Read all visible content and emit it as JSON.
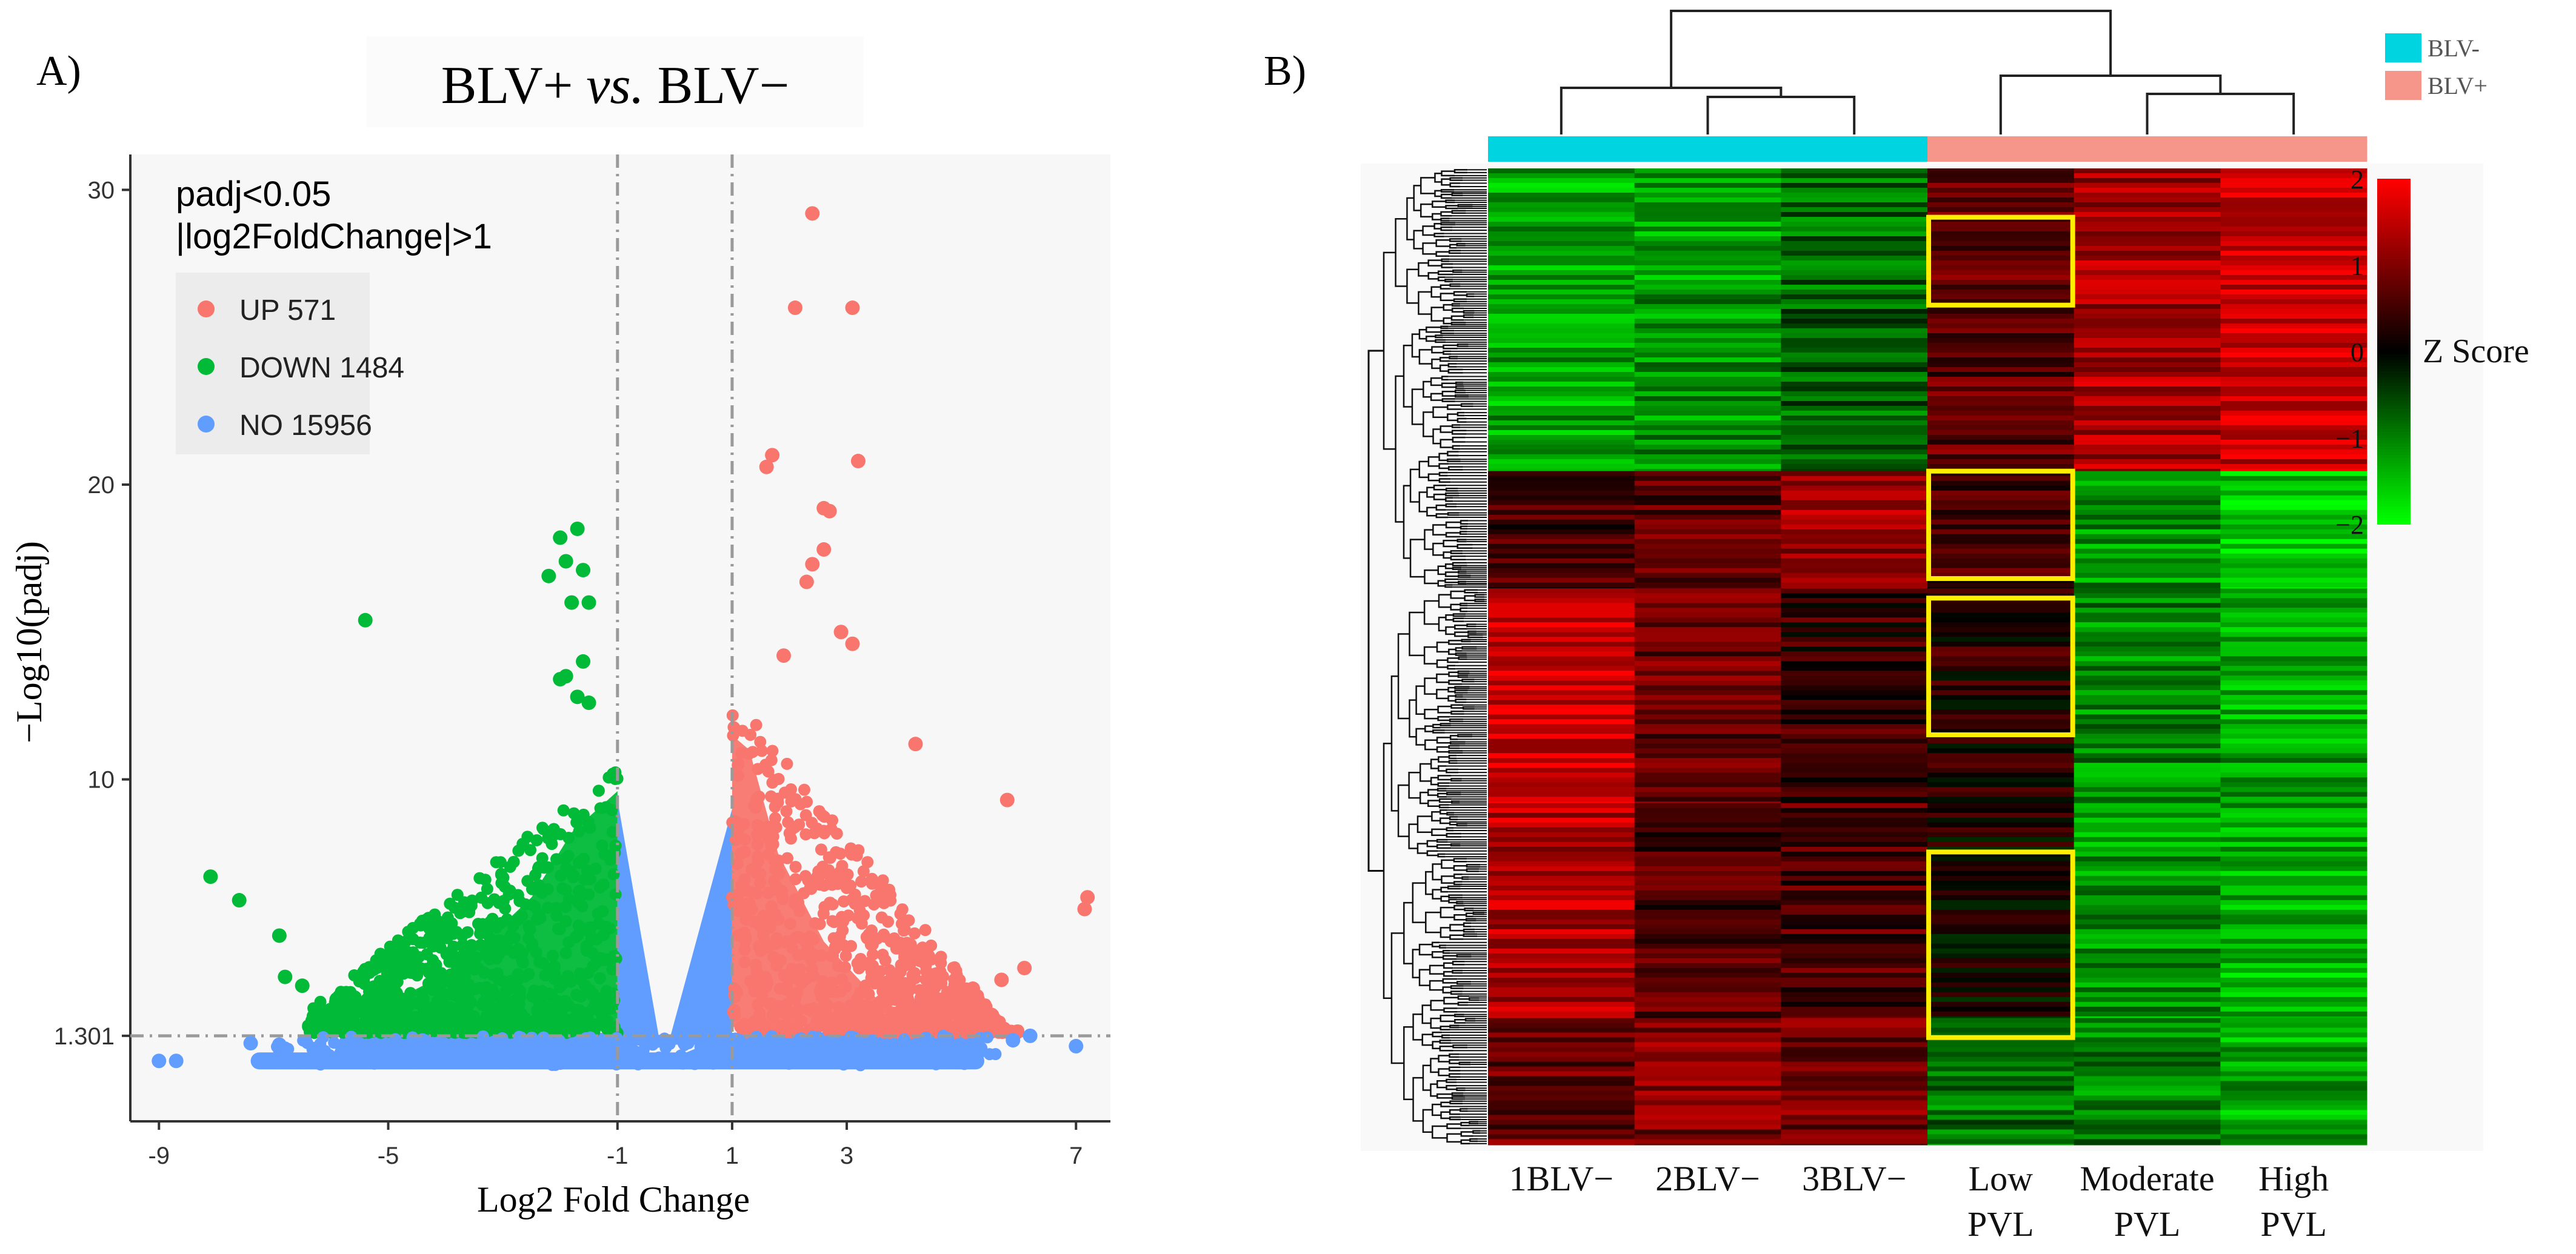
{
  "chart_data": [
    {
      "type": "scatter",
      "panel_label": "A)",
      "title": "BLV+ vs. BLV−",
      "title_parts": {
        "pre": "BLV+ ",
        "italic": "vs.",
        "post": " BLV−"
      },
      "xlabel": "Log2 Fold Change",
      "ylabel": "−Log10(padj)",
      "xlim": [
        -9.5,
        7.6
      ],
      "ylim": [
        -1.6,
        31.2
      ],
      "x_ticks": [
        -9,
        -5,
        -1,
        1,
        3,
        7
      ],
      "x_tick_labels": [
        "-9",
        "-5",
        "-1",
        "1",
        "3",
        "7"
      ],
      "y_ticks": [
        1.301,
        10,
        20,
        30
      ],
      "y_tick_labels": [
        "1.301",
        "10",
        "20",
        "30"
      ],
      "threshold_lines": {
        "x": [
          -1,
          1
        ],
        "y": 1.301
      },
      "legend_title_lines": [
        "padj<0.05",
        "|log2FoldChange|>1"
      ],
      "legend": [
        {
          "label": "UP 571",
          "color": "#f8766d"
        },
        {
          "label": "DOWN 1484",
          "color": "#00ba38"
        },
        {
          "label": "NO 15956",
          "color": "#619cff"
        }
      ],
      "series": [
        {
          "name": "UP",
          "count": 571,
          "color": "#f8766d",
          "points": [
            [
              2.4,
              29.2
            ],
            [
              3.1,
              26
            ],
            [
              2.1,
              26
            ],
            [
              3.2,
              20.8
            ],
            [
              1.7,
              21
            ],
            [
              1.6,
              20.6
            ],
            [
              2.6,
              19.2
            ],
            [
              2.7,
              19.1
            ],
            [
              2.6,
              17.8
            ],
            [
              2.4,
              17.3
            ],
            [
              2.3,
              16.7
            ],
            [
              3.1,
              14.6
            ],
            [
              2.9,
              15
            ],
            [
              1.9,
              14.2
            ],
            [
              4.2,
              11.2
            ],
            [
              5.8,
              9.3
            ],
            [
              7.2,
              6.0
            ],
            [
              7.15,
              5.6
            ],
            [
              6.1,
              3.6
            ],
            [
              5.7,
              3.2
            ],
            [
              5.2,
              2.9
            ]
          ]
        },
        {
          "name": "DOWN",
          "count": 1484,
          "color": "#00ba38",
          "points": [
            [
              -1.7,
              18.5
            ],
            [
              -2.0,
              18.2
            ],
            [
              -1.9,
              17.4
            ],
            [
              -1.6,
              17.1
            ],
            [
              -2.2,
              16.9
            ],
            [
              -1.5,
              16.0
            ],
            [
              -1.8,
              16.0
            ],
            [
              -5.4,
              15.4
            ],
            [
              -1.6,
              14.0
            ],
            [
              -1.9,
              13.5
            ],
            [
              -2.0,
              13.4
            ],
            [
              -1.7,
              12.8
            ],
            [
              -1.5,
              12.6
            ],
            [
              -8.1,
              6.7
            ],
            [
              -7.6,
              5.9
            ],
            [
              -6.9,
              4.7
            ],
            [
              -6.8,
              3.3
            ],
            [
              -6.5,
              3.0
            ]
          ]
        },
        {
          "name": "NO",
          "count": 15956,
          "color": "#619cff",
          "points": [
            [
              -9.0,
              0.45
            ],
            [
              -8.7,
              0.45
            ],
            [
              -7.1,
              0.45
            ],
            [
              -7.4,
              1.05
            ],
            [
              -6.9,
              1.0
            ],
            [
              -6.3,
              0.85
            ],
            [
              5.9,
              1.15
            ],
            [
              6.2,
              1.3
            ],
            [
              7.0,
              0.95
            ],
            [
              5.3,
              0.75
            ],
            [
              4.8,
              1.0
            ]
          ]
        }
      ]
    },
    {
      "type": "heatmap",
      "panel_label": "B)",
      "columns": [
        "1BLV−",
        "2BLV−",
        "3BLV−",
        "Low\nPVL",
        "Moderate\nPVL",
        "High\nPVL"
      ],
      "column_labels": [
        {
          "line1": "1BLV−",
          "line2": ""
        },
        {
          "line1": "2BLV−",
          "line2": ""
        },
        {
          "line1": "3BLV−",
          "line2": ""
        },
        {
          "line1": "Low",
          "line2": "PVL"
        },
        {
          "line1": "Moderate",
          "line2": "PVL"
        },
        {
          "line1": "High",
          "line2": "PVL"
        }
      ],
      "column_groups": [
        "BLV-",
        "BLV-",
        "BLV-",
        "BLV+",
        "BLV+",
        "BLV+"
      ],
      "group_legend": [
        {
          "label": "BLV-",
          "color": "#00d4e0"
        },
        {
          "label": "BLV+",
          "color": "#f6958a"
        }
      ],
      "colorbar": {
        "title": "Z Score",
        "min": -2,
        "max": 2,
        "ticks": [
          2,
          1,
          0,
          -1,
          -2
        ],
        "tick_labels": [
          "2",
          "1",
          "0",
          "−1",
          "−2"
        ],
        "colors": [
          "#00ff00",
          "#000000",
          "#ff0000"
        ]
      },
      "row_blocks": [
        {
          "fraction": 0.31,
          "z": [
            -1.3,
            -1.2,
            -0.8,
            0.7,
            1.3,
            1.6
          ]
        },
        {
          "fraction": 0.12,
          "z": [
            0.5,
            0.7,
            1.2,
            0.5,
            -1.2,
            -1.6
          ]
        },
        {
          "fraction": 0.22,
          "z": [
            1.6,
            0.8,
            0.4,
            0.3,
            -1.1,
            -1.3
          ]
        },
        {
          "fraction": 0.22,
          "z": [
            1.4,
            0.6,
            0.6,
            0.1,
            -1.2,
            -1.4
          ]
        },
        {
          "fraction": 0.13,
          "z": [
            0.8,
            1.0,
            0.9,
            -0.9,
            -1.0,
            -1.3
          ]
        }
      ],
      "highlight_boxes": [
        {
          "column": "Low PVL",
          "row_range": [
            0.05,
            0.14
          ]
        },
        {
          "column": "Low PVL",
          "row_range": [
            0.31,
            0.42
          ]
        },
        {
          "column": "Low PVL",
          "row_range": [
            0.44,
            0.58
          ]
        },
        {
          "column": "Low PVL",
          "row_range": [
            0.7,
            0.89
          ]
        }
      ],
      "highlight_color": "#ffee00"
    }
  ]
}
